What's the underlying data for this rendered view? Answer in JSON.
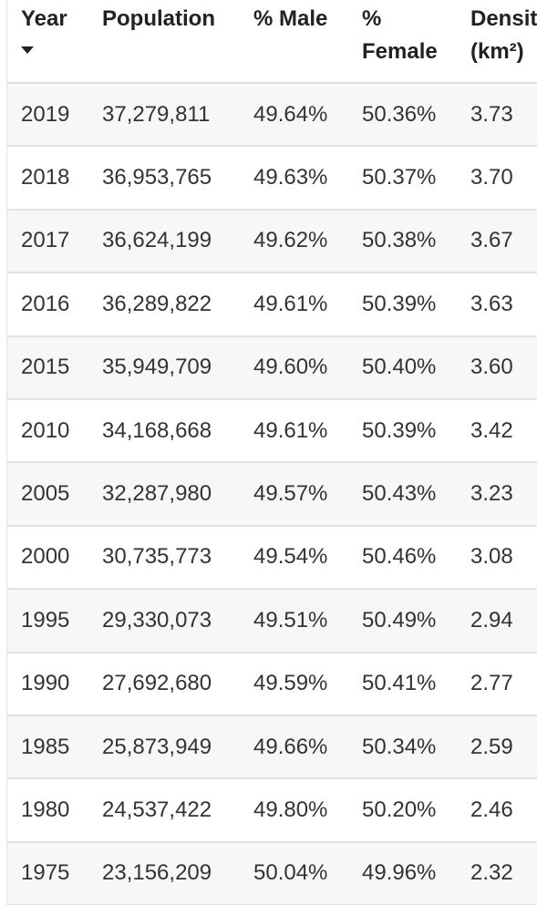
{
  "table": {
    "headers": {
      "year": "Year",
      "population": "Population",
      "male": "% Male",
      "female_line1": "%",
      "female_line2": "Female",
      "density_line1": "Density",
      "density_line2": "(km²)"
    },
    "sort": {
      "column": "Year",
      "direction": "descending",
      "icon": "caret-down-icon"
    },
    "rows": [
      {
        "year": "2019",
        "population": "37,279,811",
        "male": "49.64%",
        "female": "50.36%",
        "density": "3.73"
      },
      {
        "year": "2018",
        "population": "36,953,765",
        "male": "49.63%",
        "female": "50.37%",
        "density": "3.70"
      },
      {
        "year": "2017",
        "population": "36,624,199",
        "male": "49.62%",
        "female": "50.38%",
        "density": "3.67"
      },
      {
        "year": "2016",
        "population": "36,289,822",
        "male": "49.61%",
        "female": "50.39%",
        "density": "3.63"
      },
      {
        "year": "2015",
        "population": "35,949,709",
        "male": "49.60%",
        "female": "50.40%",
        "density": "3.60"
      },
      {
        "year": "2010",
        "population": "34,168,668",
        "male": "49.61%",
        "female": "50.39%",
        "density": "3.42"
      },
      {
        "year": "2005",
        "population": "32,287,980",
        "male": "49.57%",
        "female": "50.43%",
        "density": "3.23"
      },
      {
        "year": "2000",
        "population": "30,735,773",
        "male": "49.54%",
        "female": "50.46%",
        "density": "3.08"
      },
      {
        "year": "1995",
        "population": "29,330,073",
        "male": "49.51%",
        "female": "50.49%",
        "density": "2.94"
      },
      {
        "year": "1990",
        "population": "27,692,680",
        "male": "49.59%",
        "female": "50.41%",
        "density": "2.77"
      },
      {
        "year": "1985",
        "population": "25,873,949",
        "male": "49.66%",
        "female": "50.34%",
        "density": "2.59"
      },
      {
        "year": "1980",
        "population": "24,537,422",
        "male": "49.80%",
        "female": "50.20%",
        "density": "2.46"
      },
      {
        "year": "1975",
        "population": "23,156,209",
        "male": "50.04%",
        "female": "49.96%",
        "density": "2.32"
      }
    ]
  }
}
